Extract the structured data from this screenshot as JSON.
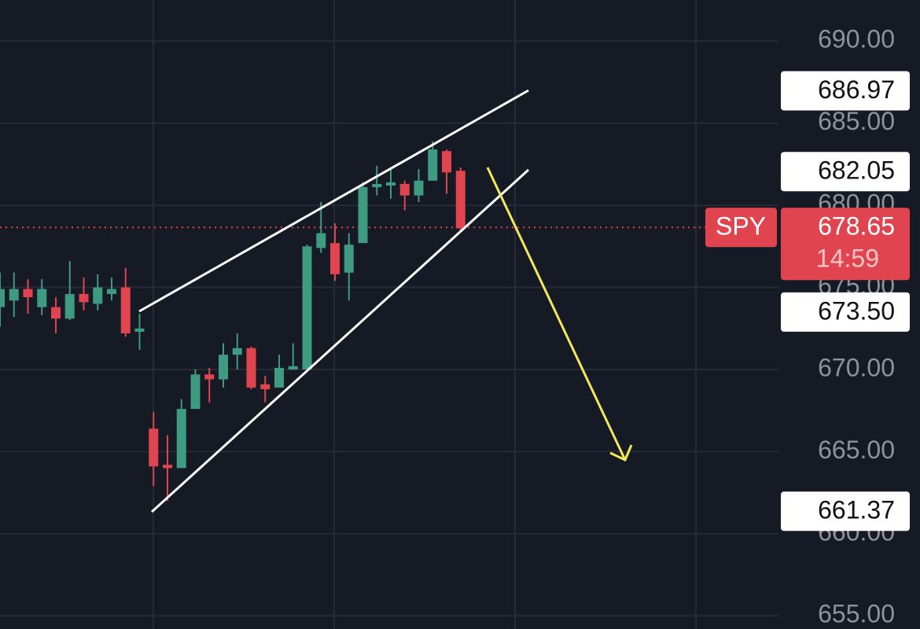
{
  "chart_data": {
    "type": "candlestick",
    "symbol": "SPY",
    "countdown": "14:59",
    "up_color": "#3e9b82",
    "down_color": "#e0454f",
    "grid": true,
    "ylim": [
      654.2,
      692.5
    ],
    "yticks": [
      {
        "value": 690,
        "label": "690.00"
      },
      {
        "value": 685,
        "label": "685.00"
      },
      {
        "value": 680,
        "label": "680.00"
      },
      {
        "value": 675,
        "label": "675.00"
      },
      {
        "value": 670,
        "label": "670.00"
      },
      {
        "value": 665,
        "label": "665.00"
      },
      {
        "value": 660,
        "label": "660.00"
      },
      {
        "value": 655,
        "label": "655.00"
      }
    ],
    "price_labels": [
      {
        "value": 686.97,
        "label": "686.97"
      },
      {
        "value": 682.05,
        "label": "682.05"
      },
      {
        "value": 673.5,
        "label": "673.50"
      },
      {
        "value": 661.37,
        "label": "661.37"
      }
    ],
    "current_price": {
      "value": 678.65,
      "label": "678.65"
    },
    "open": [
      673.8,
      674.2,
      674.9,
      673.8,
      673.8,
      673.1,
      674.6,
      674.0,
      674.6,
      675.0,
      672.3,
      666.4,
      664.2,
      664.0,
      667.6,
      669.7,
      669.4,
      670.9,
      671.3,
      669.1,
      668.9,
      670.0,
      670.0,
      677.4,
      677.7,
      675.9,
      677.7,
      681.1,
      681.2,
      681.3,
      680.6,
      681.5,
      683.3,
      682.1
    ],
    "high": [
      675.9,
      675.9,
      675.5,
      675.5,
      674.4,
      676.6,
      675.6,
      675.8,
      675.6,
      676.2,
      673.4,
      667.4,
      666.0,
      668.2,
      670.0,
      670.1,
      671.6,
      672.2,
      671.4,
      669.6,
      670.9,
      671.6,
      677.6,
      680.2,
      678.9,
      678.3,
      681.4,
      682.4,
      682.2,
      681.5,
      682.2,
      683.9,
      683.4,
      682.3
    ],
    "low": [
      672.6,
      673.2,
      673.4,
      673.3,
      672.2,
      673.0,
      673.6,
      673.6,
      674.2,
      672.0,
      671.2,
      662.9,
      662.0,
      664.0,
      667.6,
      668.0,
      668.9,
      670.0,
      668.8,
      668.0,
      668.9,
      670.0,
      670.0,
      677.1,
      675.4,
      674.2,
      677.7,
      680.6,
      680.4,
      679.7,
      680.2,
      681.5,
      680.7,
      678.4
    ],
    "close": [
      674.9,
      674.9,
      674.4,
      674.9,
      673.1,
      674.6,
      674.1,
      675.0,
      674.9,
      672.2,
      672.5,
      664.1,
      664.0,
      667.6,
      669.7,
      669.4,
      670.9,
      671.3,
      668.9,
      668.8,
      670.1,
      670.2,
      677.5,
      678.3,
      675.8,
      677.6,
      681.1,
      681.3,
      681.4,
      680.6,
      681.5,
      683.4,
      682.0,
      678.6
    ]
  }
}
